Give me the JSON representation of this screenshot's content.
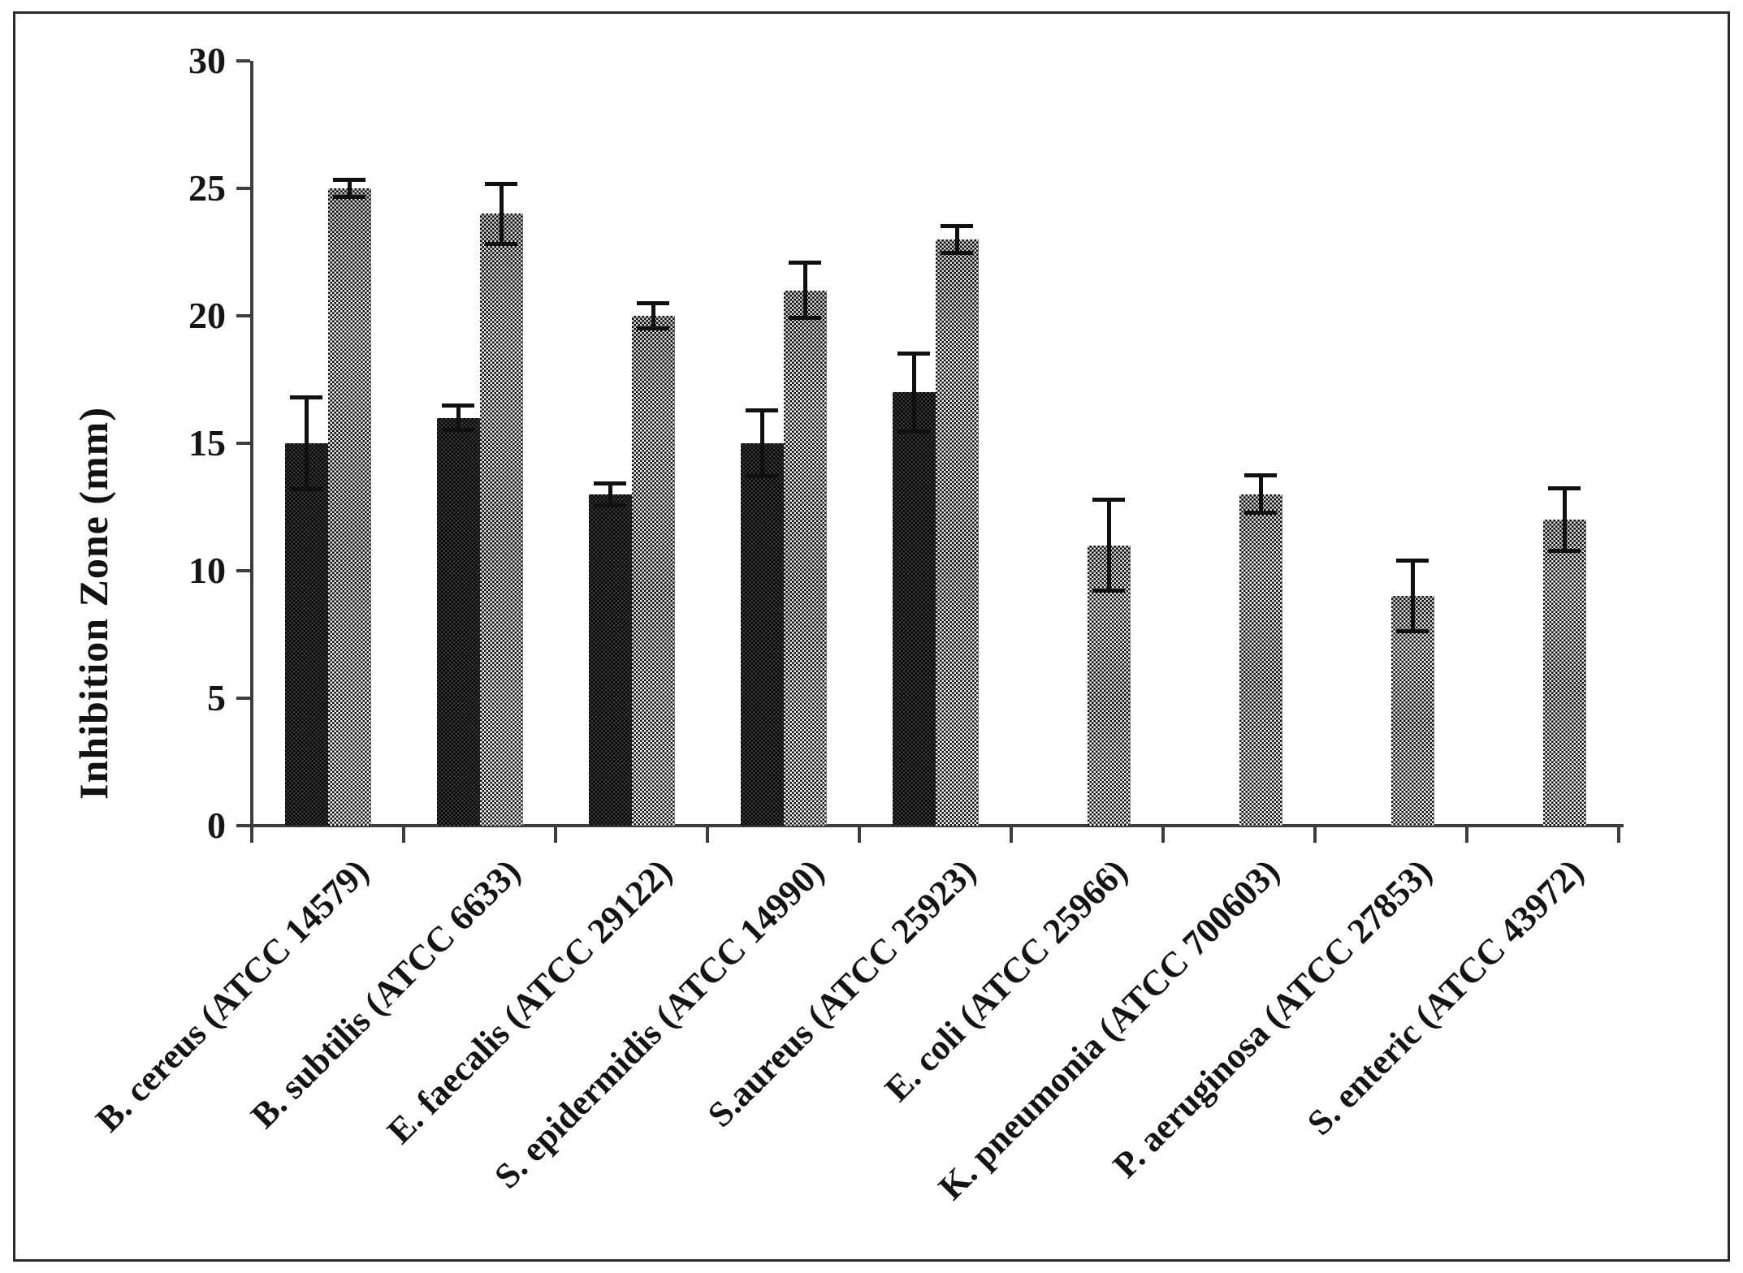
{
  "chart_data": {
    "type": "bar",
    "title": "",
    "ylabel": "Inhibition Zone (mm)",
    "xlabel": "",
    "ylim": [
      0,
      30
    ],
    "y_ticks": [
      0,
      5,
      10,
      15,
      20,
      25,
      30
    ],
    "grid": false,
    "legend": "none",
    "error_bars": true,
    "categories": [
      "B. cereus (ATCC 14579)",
      "B. subtilis (ATCC 6633)",
      "E. faecalis (ATCC 29122)",
      "S. epidermidis (ATCC 14990)",
      "S.aureus (ATCC 25923)",
      "E. coli (ATCC 25966)",
      "K. pneumonia (ATCC 700603)",
      "P. aeruginosa (ATCC 27853)",
      "S. enteric (ATCC 43972)"
    ],
    "series": [
      {
        "name": "dark-bars",
        "color": "#1f1f1f",
        "values": [
          15,
          16,
          13,
          15,
          17,
          null,
          null,
          null,
          null
        ],
        "errors": [
          1.8,
          0.5,
          0.45,
          1.3,
          1.55,
          null,
          null,
          null,
          null
        ]
      },
      {
        "name": "light-bars",
        "color": "#8c8c8c",
        "values": [
          25,
          24,
          20,
          21,
          23,
          11,
          13,
          9,
          12
        ],
        "errors": [
          0.35,
          1.2,
          0.5,
          1.1,
          0.55,
          1.8,
          0.75,
          1.4,
          1.25
        ]
      }
    ]
  }
}
